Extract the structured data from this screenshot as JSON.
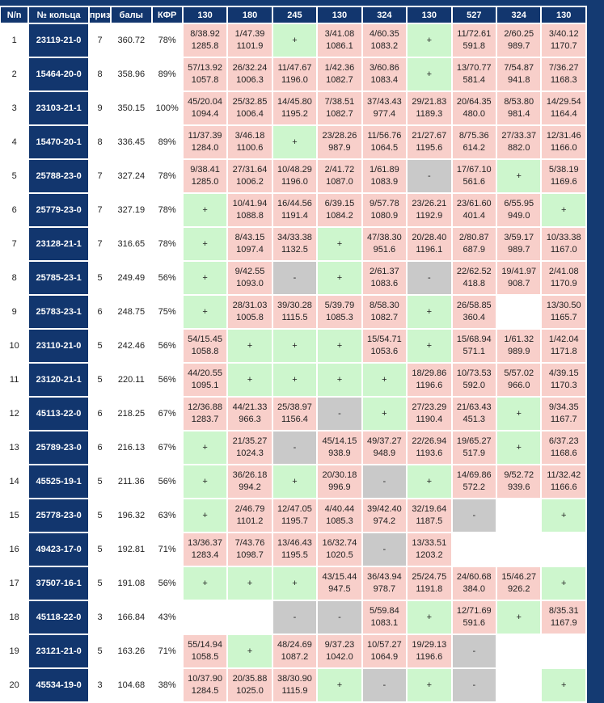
{
  "table": {
    "columns": [
      "N/n",
      "№ кольца",
      "приз",
      "балы",
      "КФР",
      "130",
      "180",
      "245",
      "130",
      "324",
      "130",
      "527",
      "324",
      "130"
    ],
    "rows": [
      [
        "1",
        "23119-21-0",
        "7",
        "360.72",
        "78%",
        [
          "8/38.92",
          "1285.8"
        ],
        [
          "1/47.39",
          "1101.9"
        ],
        "+",
        [
          "3/41.08",
          "1086.1"
        ],
        [
          "4/60.35",
          "1083.2"
        ],
        "+",
        [
          "11/72.61",
          "591.8"
        ],
        [
          "2/60.25",
          "989.7"
        ],
        [
          "3/40.12",
          "1170.7"
        ]
      ],
      [
        "2",
        "15464-20-0",
        "8",
        "358.96",
        "89%",
        [
          "57/13.92",
          "1057.8"
        ],
        [
          "26/32.24",
          "1006.3"
        ],
        [
          "11/47.67",
          "1196.0"
        ],
        [
          "1/42.36",
          "1082.7"
        ],
        [
          "3/60.86",
          "1083.4"
        ],
        "+",
        [
          "13/70.77",
          "581.4"
        ],
        [
          "7/54.87",
          "941.8"
        ],
        [
          "7/36.27",
          "1168.3"
        ]
      ],
      [
        "3",
        "23103-21-1",
        "9",
        "350.15",
        "100%",
        [
          "45/20.04",
          "1094.4"
        ],
        [
          "25/32.85",
          "1006.4"
        ],
        [
          "14/45.80",
          "1195.2"
        ],
        [
          "7/38.51",
          "1082.7"
        ],
        [
          "37/43.43",
          "977.4"
        ],
        [
          "29/21.83",
          "1189.3"
        ],
        [
          "20/64.35",
          "480.0"
        ],
        [
          "8/53.80",
          "981.4"
        ],
        [
          "14/29.54",
          "1164.4"
        ]
      ],
      [
        "4",
        "15470-20-1",
        "8",
        "336.45",
        "89%",
        [
          "11/37.39",
          "1284.0"
        ],
        [
          "3/46.18",
          "1100.6"
        ],
        "+",
        [
          "23/28.26",
          "987.9"
        ],
        [
          "11/56.76",
          "1064.5"
        ],
        [
          "21/27.67",
          "1195.6"
        ],
        [
          "8/75.36",
          "614.2"
        ],
        [
          "27/33.37",
          "882.0"
        ],
        [
          "12/31.46",
          "1166.0"
        ]
      ],
      [
        "5",
        "25788-23-0",
        "7",
        "327.24",
        "78%",
        [
          "9/38.41",
          "1285.0"
        ],
        [
          "27/31.64",
          "1006.2"
        ],
        [
          "10/48.29",
          "1196.0"
        ],
        [
          "2/41.72",
          "1087.0"
        ],
        [
          "1/61.89",
          "1083.9"
        ],
        "-",
        [
          "17/67.10",
          "561.6"
        ],
        "+",
        [
          "5/38.19",
          "1169.6"
        ]
      ],
      [
        "6",
        "25779-23-0",
        "7",
        "327.19",
        "78%",
        "+",
        [
          "10/41.94",
          "1088.8"
        ],
        [
          "16/44.56",
          "1191.4"
        ],
        [
          "6/39.15",
          "1084.2"
        ],
        [
          "9/57.78",
          "1080.9"
        ],
        [
          "23/26.21",
          "1192.9"
        ],
        [
          "23/61.60",
          "401.4"
        ],
        [
          "6/55.95",
          "949.0"
        ],
        "+"
      ],
      [
        "7",
        "23128-21-1",
        "7",
        "316.65",
        "78%",
        "+",
        [
          "8/43.15",
          "1097.4"
        ],
        [
          "34/33.38",
          "1132.5"
        ],
        "+",
        [
          "47/38.30",
          "951.6"
        ],
        [
          "20/28.40",
          "1196.1"
        ],
        [
          "2/80.87",
          "687.9"
        ],
        [
          "3/59.17",
          "989.7"
        ],
        [
          "10/33.38",
          "1167.0"
        ]
      ],
      [
        "8",
        "25785-23-1",
        "5",
        "249.49",
        "56%",
        "+",
        [
          "9/42.55",
          "1093.0"
        ],
        "-",
        "+",
        [
          "2/61.37",
          "1083.6"
        ],
        "-",
        [
          "22/62.52",
          "418.8"
        ],
        [
          "19/41.97",
          "908.7"
        ],
        [
          "2/41.08",
          "1170.9"
        ]
      ],
      [
        "9",
        "25783-23-1",
        "6",
        "248.75",
        "75%",
        "+",
        [
          "28/31.03",
          "1005.8"
        ],
        [
          "39/30.28",
          "1115.5"
        ],
        [
          "5/39.79",
          "1085.3"
        ],
        [
          "8/58.30",
          "1082.7"
        ],
        "+",
        [
          "26/58.85",
          "360.4"
        ],
        null,
        [
          "13/30.50",
          "1165.7"
        ]
      ],
      [
        "10",
        "23110-21-0",
        "5",
        "242.46",
        "56%",
        [
          "54/15.45",
          "1058.8"
        ],
        "+",
        "+",
        "+",
        [
          "15/54.71",
          "1053.6"
        ],
        "+",
        [
          "15/68.94",
          "571.1"
        ],
        [
          "1/61.32",
          "989.9"
        ],
        [
          "1/42.04",
          "1171.8"
        ]
      ],
      [
        "11",
        "23120-21-1",
        "5",
        "220.11",
        "56%",
        [
          "44/20.55",
          "1095.1"
        ],
        "+",
        "+",
        "+",
        "+",
        [
          "18/29.86",
          "1196.6"
        ],
        [
          "10/73.53",
          "592.0"
        ],
        [
          "5/57.02",
          "966.0"
        ],
        [
          "4/39.15",
          "1170.3"
        ]
      ],
      [
        "12",
        "45113-22-0",
        "6",
        "218.25",
        "67%",
        [
          "12/36.88",
          "1283.7"
        ],
        [
          "44/21.33",
          "966.3"
        ],
        [
          "25/38.97",
          "1156.4"
        ],
        "-",
        "+",
        [
          "27/23.29",
          "1190.4"
        ],
        [
          "21/63.43",
          "451.3"
        ],
        "+",
        [
          "9/34.35",
          "1167.7"
        ]
      ],
      [
        "13",
        "25789-23-0",
        "6",
        "216.13",
        "67%",
        "+",
        [
          "21/35.27",
          "1024.3"
        ],
        "-",
        [
          "45/14.15",
          "938.9"
        ],
        [
          "49/37.27",
          "948.9"
        ],
        [
          "22/26.94",
          "1193.6"
        ],
        [
          "19/65.27",
          "517.9"
        ],
        "+",
        [
          "6/37.23",
          "1168.6"
        ]
      ],
      [
        "14",
        "45525-19-1",
        "5",
        "211.36",
        "56%",
        "+",
        [
          "36/26.18",
          "994.2"
        ],
        "+",
        [
          "20/30.18",
          "996.9"
        ],
        "-",
        "+",
        [
          "14/69.86",
          "572.2"
        ],
        [
          "9/52.72",
          "939.6"
        ],
        [
          "11/32.42",
          "1166.6"
        ]
      ],
      [
        "15",
        "25778-23-0",
        "5",
        "196.32",
        "63%",
        "+",
        [
          "2/46.79",
          "1101.2"
        ],
        [
          "12/47.05",
          "1195.7"
        ],
        [
          "4/40.44",
          "1085.3"
        ],
        [
          "39/42.40",
          "974.2"
        ],
        [
          "32/19.64",
          "1187.5"
        ],
        "-",
        null,
        "+"
      ],
      [
        "16",
        "49423-17-0",
        "5",
        "192.81",
        "71%",
        [
          "13/36.37",
          "1283.4"
        ],
        [
          "7/43.76",
          "1098.7"
        ],
        [
          "13/46.43",
          "1195.5"
        ],
        [
          "16/32.74",
          "1020.5"
        ],
        "-",
        [
          "13/33.51",
          "1203.2"
        ],
        null,
        null,
        null
      ],
      [
        "17",
        "37507-16-1",
        "5",
        "191.08",
        "56%",
        "+",
        "+",
        "+",
        [
          "43/15.44",
          "947.5"
        ],
        [
          "36/43.94",
          "978.7"
        ],
        [
          "25/24.75",
          "1191.8"
        ],
        [
          "24/60.68",
          "384.0"
        ],
        [
          "15/46.27",
          "926.2"
        ],
        "+"
      ],
      [
        "18",
        "45118-22-0",
        "3",
        "166.84",
        "43%",
        null,
        null,
        "-",
        "-",
        [
          "5/59.84",
          "1083.1"
        ],
        "+",
        [
          "12/71.69",
          "591.6"
        ],
        "+",
        [
          "8/35.31",
          "1167.9"
        ]
      ],
      [
        "19",
        "23121-21-0",
        "5",
        "163.26",
        "71%",
        [
          "55/14.94",
          "1058.5"
        ],
        "+",
        [
          "48/24.69",
          "1087.2"
        ],
        [
          "9/37.23",
          "1042.0"
        ],
        [
          "10/57.27",
          "1064.9"
        ],
        [
          "19/29.13",
          "1196.6"
        ],
        "-",
        null,
        null
      ],
      [
        "20",
        "45534-19-0",
        "3",
        "104.68",
        "38%",
        [
          "10/37.90",
          "1284.5"
        ],
        [
          "20/35.88",
          "1025.0"
        ],
        [
          "38/30.90",
          "1115.9"
        ],
        "+",
        "-",
        "+",
        "-",
        null,
        "+"
      ]
    ]
  }
}
